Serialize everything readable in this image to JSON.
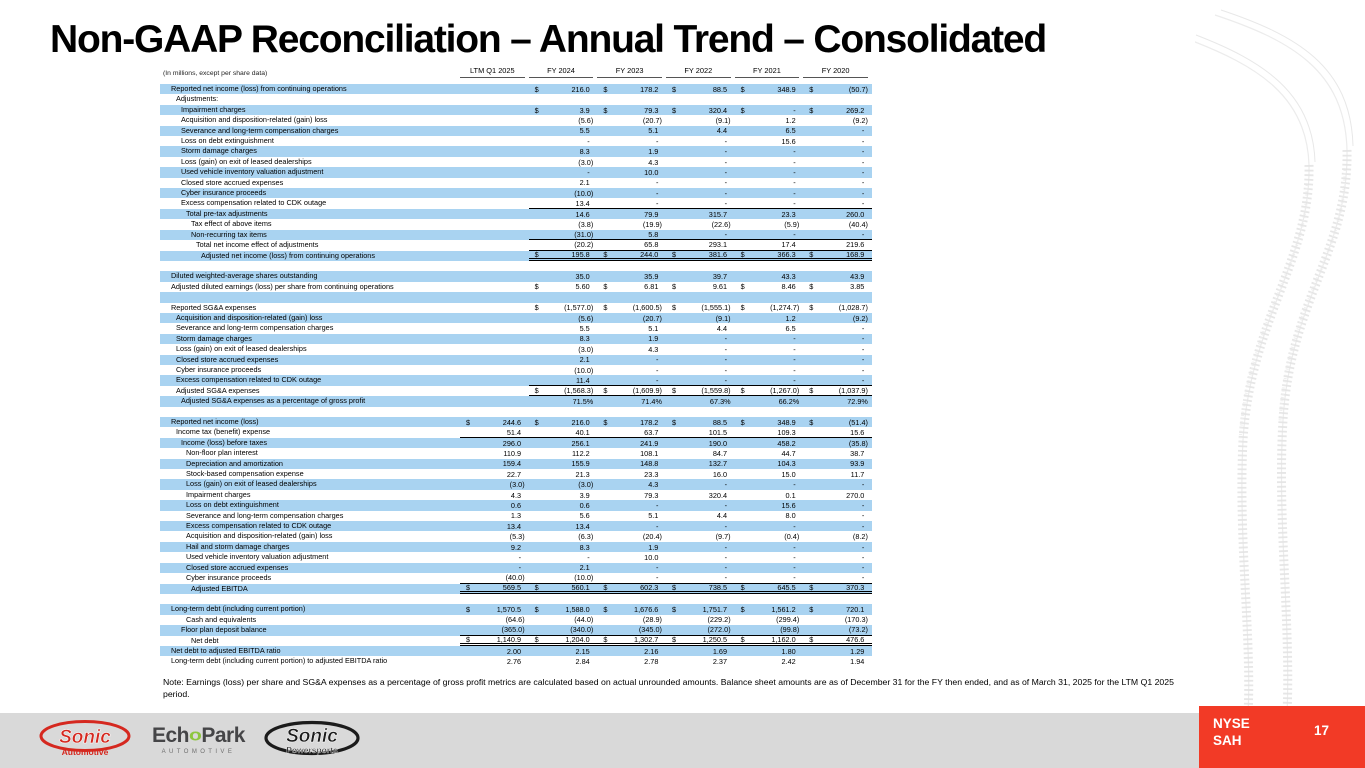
{
  "title": "Non-GAAP Reconciliation – Annual Trend – Consolidated",
  "table": {
    "units_label": "(In millions, except per share data)",
    "columns": [
      "LTM Q1 2025",
      "FY 2024",
      "FY 2023",
      "FY 2022",
      "FY 2021",
      "FY 2020"
    ],
    "rows": [
      {
        "label": "Reported net income (loss) from continuing operations",
        "indent": 1,
        "dollar": true,
        "values": [
          "",
          "216.0",
          "178.2",
          "88.5",
          "348.9",
          "(50.7)"
        ]
      },
      {
        "label": "Adjustments:",
        "indent": 2,
        "values": [
          "",
          "",
          "",
          "",
          "",
          ""
        ]
      },
      {
        "label": "Impairment charges",
        "indent": 3,
        "dollar": true,
        "values": [
          "",
          "3.9",
          "79.3",
          "320.4",
          "-",
          "269.2"
        ]
      },
      {
        "label": "Acquisition and disposition-related (gain) loss",
        "indent": 3,
        "values": [
          "",
          "(5.6)",
          "(20.7)",
          "(9.1)",
          "1.2",
          "(9.2)"
        ]
      },
      {
        "label": "Severance and long-term compensation charges",
        "indent": 3,
        "values": [
          "",
          "5.5",
          "5.1",
          "4.4",
          "6.5",
          "-"
        ]
      },
      {
        "label": "Loss on debt extinguishment",
        "indent": 3,
        "values": [
          "",
          "-",
          "-",
          "-",
          "15.6",
          "-"
        ]
      },
      {
        "label": "Storm damage charges",
        "indent": 3,
        "values": [
          "",
          "8.3",
          "1.9",
          "-",
          "-",
          "-"
        ]
      },
      {
        "label": "Loss (gain) on exit of leased dealerships",
        "indent": 3,
        "values": [
          "",
          "(3.0)",
          "4.3",
          "-",
          "-",
          "-"
        ]
      },
      {
        "label": "Used vehicle inventory valuation adjustment",
        "indent": 3,
        "values": [
          "",
          "-",
          "10.0",
          "-",
          "-",
          "-"
        ]
      },
      {
        "label": "Closed store accrued expenses",
        "indent": 3,
        "values": [
          "",
          "2.1",
          "-",
          "-",
          "-",
          "-"
        ]
      },
      {
        "label": "Cyber insurance proceeds",
        "indent": 3,
        "values": [
          "",
          "(10.0)",
          "-",
          "-",
          "-",
          "-"
        ]
      },
      {
        "label": "Excess compensation related to CDK outage",
        "indent": 3,
        "values": [
          "",
          "13.4",
          "-",
          "-",
          "-",
          "-"
        ],
        "border": "single"
      },
      {
        "label": "Total pre-tax adjustments",
        "indent": 4,
        "values": [
          "",
          "14.6",
          "79.9",
          "315.7",
          "23.3",
          "260.0"
        ]
      },
      {
        "label": "Tax effect of above items",
        "indent": 5,
        "values": [
          "",
          "(3.8)",
          "(19.9)",
          "(22.6)",
          "(5.9)",
          "(40.4)"
        ]
      },
      {
        "label": "Non-recurring tax items",
        "indent": 5,
        "values": [
          "",
          "(31.0)",
          "5.8",
          "-",
          "-",
          "-"
        ],
        "border": "single"
      },
      {
        "label": "Total net income effect of adjustments",
        "indent": 6,
        "values": [
          "",
          "(20.2)",
          "65.8",
          "293.1",
          "17.4",
          "219.6"
        ],
        "border": "single"
      },
      {
        "label": "Adjusted net income (loss) from continuing operations",
        "indent": 7,
        "dollar": true,
        "values": [
          "",
          "195.8",
          "244.0",
          "381.6",
          "366.3",
          "168.9"
        ],
        "border": "double"
      },
      {
        "type": "spacer"
      },
      {
        "label": "Diluted weighted-average shares outstanding",
        "indent": 1,
        "values": [
          "",
          "35.0",
          "35.9",
          "39.7",
          "43.3",
          "43.9"
        ]
      },
      {
        "label": "Adjusted diluted earnings (loss) per share from continuing operations",
        "indent": 1,
        "dollar": true,
        "values": [
          "",
          "5.60",
          "6.81",
          "9.61",
          "8.46",
          "3.85"
        ]
      },
      {
        "type": "spacer"
      },
      {
        "label": "Reported SG&A expenses",
        "indent": 1,
        "dollar": true,
        "values": [
          "",
          "(1,577.0)",
          "(1,600.5)",
          "(1,555.1)",
          "(1,274.7)",
          "(1,028.7)"
        ]
      },
      {
        "label": "Acquisition and disposition-related (gain) loss",
        "indent": 2,
        "values": [
          "",
          "(5.6)",
          "(20.7)",
          "(9.1)",
          "1.2",
          "(9.2)"
        ]
      },
      {
        "label": "Severance and long-term compensation charges",
        "indent": 2,
        "values": [
          "",
          "5.5",
          "5.1",
          "4.4",
          "6.5",
          "-"
        ]
      },
      {
        "label": "Storm damage charges",
        "indent": 2,
        "values": [
          "",
          "8.3",
          "1.9",
          "-",
          "-",
          "-"
        ]
      },
      {
        "label": "Loss (gain) on exit of leased dealerships",
        "indent": 2,
        "values": [
          "",
          "(3.0)",
          "4.3",
          "-",
          "-",
          "-"
        ]
      },
      {
        "label": "Closed store accrued expenses",
        "indent": 2,
        "values": [
          "",
          "2.1",
          "-",
          "-",
          "-",
          "-"
        ]
      },
      {
        "label": "Cyber insurance proceeds",
        "indent": 2,
        "values": [
          "",
          "(10.0)",
          "-",
          "-",
          "-",
          "-"
        ]
      },
      {
        "label": "Excess compensation related to CDK outage",
        "indent": 2,
        "values": [
          "",
          "11.4",
          "-",
          "-",
          "-",
          "-"
        ],
        "border": "single"
      },
      {
        "label": "Adjusted SG&A expenses",
        "indent": 2,
        "dollar": true,
        "values": [
          "",
          "(1,568.3)",
          "(1,609.9)",
          "(1,559.8)",
          "(1,267.0)",
          "(1,037.9)"
        ],
        "border": "single"
      },
      {
        "label": "Adjusted SG&A expenses as a percentage of gross profit",
        "indent": 3,
        "values": [
          "",
          "71.5%",
          "71.4%",
          "67.3%",
          "66.2%",
          "72.9%"
        ]
      },
      {
        "type": "spacer"
      },
      {
        "label": "Reported net income (loss)",
        "indent": 1,
        "dollar": true,
        "values": [
          "244.6",
          "216.0",
          "178.2",
          "88.5",
          "348.9",
          "(51.4)"
        ]
      },
      {
        "label": "Income tax (benefit) expense",
        "indent": 2,
        "values": [
          "51.4",
          "40.1",
          "63.7",
          "101.5",
          "109.3",
          "15.6"
        ],
        "border": "single"
      },
      {
        "label": "Income (loss) before taxes",
        "indent": 3,
        "values": [
          "296.0",
          "256.1",
          "241.9",
          "190.0",
          "458.2",
          "(35.8)"
        ]
      },
      {
        "label": "Non-floor plan interest",
        "indent": 4,
        "values": [
          "110.9",
          "112.2",
          "108.1",
          "84.7",
          "44.7",
          "38.7"
        ]
      },
      {
        "label": "Depreciation and amortization",
        "indent": 4,
        "values": [
          "159.4",
          "155.9",
          "148.8",
          "132.7",
          "104.3",
          "93.9"
        ]
      },
      {
        "label": "Stock-based compensation expense",
        "indent": 4,
        "values": [
          "22.7",
          "21.3",
          "23.3",
          "16.0",
          "15.0",
          "11.7"
        ]
      },
      {
        "label": "Loss (gain) on exit of leased dealerships",
        "indent": 4,
        "values": [
          "(3.0)",
          "(3.0)",
          "4.3",
          "-",
          "-",
          "-"
        ]
      },
      {
        "label": "Impairment charges",
        "indent": 4,
        "values": [
          "4.3",
          "3.9",
          "79.3",
          "320.4",
          "0.1",
          "270.0"
        ]
      },
      {
        "label": "Loss on debt extinguishment",
        "indent": 4,
        "values": [
          "0.6",
          "0.6",
          "-",
          "-",
          "15.6",
          "-"
        ]
      },
      {
        "label": "Severance and long-term compensation charges",
        "indent": 4,
        "values": [
          "1.3",
          "5.6",
          "5.1",
          "4.4",
          "8.0",
          "-"
        ]
      },
      {
        "label": "Excess compensation related to CDK outage",
        "indent": 4,
        "values": [
          "13.4",
          "13.4",
          "-",
          "-",
          "-",
          "-"
        ]
      },
      {
        "label": "Acquisition and disposition-related (gain) loss",
        "indent": 4,
        "values": [
          "(5.3)",
          "(6.3)",
          "(20.4)",
          "(9.7)",
          "(0.4)",
          "(8.2)"
        ]
      },
      {
        "label": "Hail and storm damage charges",
        "indent": 4,
        "values": [
          "9.2",
          "8.3",
          "1.9",
          "-",
          "-",
          "-"
        ]
      },
      {
        "label": "Used vehicle inventory valuation adjustment",
        "indent": 4,
        "values": [
          "-",
          "-",
          "10.0",
          "-",
          "-",
          "-"
        ]
      },
      {
        "label": "Closed store accrued expenses",
        "indent": 4,
        "values": [
          "-",
          "2.1",
          "-",
          "-",
          "-",
          "-"
        ]
      },
      {
        "label": "Cyber insurance proceeds",
        "indent": 4,
        "values": [
          "(40.0)",
          "(10.0)",
          "-",
          "-",
          "-",
          "-"
        ],
        "border": "single"
      },
      {
        "label": "Adjusted EBITDA",
        "indent": 5,
        "dollar": true,
        "values": [
          "569.5",
          "560.1",
          "602.3",
          "738.5",
          "645.5",
          "370.3"
        ],
        "border": "double"
      },
      {
        "type": "spacer"
      },
      {
        "label": "Long-term debt (including current portion)",
        "indent": 1,
        "dollar": true,
        "values": [
          "1,570.5",
          "1,588.0",
          "1,676.6",
          "1,751.7",
          "1,561.2",
          "720.1"
        ]
      },
      {
        "label": "Cash and equivalents",
        "indent": 4,
        "values": [
          "(64.6)",
          "(44.0)",
          "(28.9)",
          "(229.2)",
          "(299.4)",
          "(170.3)"
        ]
      },
      {
        "label": "Floor plan deposit balance",
        "indent": 3,
        "values": [
          "(365.0)",
          "(340.0)",
          "(345.0)",
          "(272.0)",
          "(99.8)",
          "(73.2)"
        ],
        "border": "single"
      },
      {
        "label": "Net debt",
        "indent": 5,
        "dollar": true,
        "values": [
          "1,140.9",
          "1,204.0",
          "1,302.7",
          "1,250.5",
          "1,162.0",
          "476.6"
        ],
        "border": "double"
      },
      {
        "label": "Net debt to adjusted EBITDA ratio",
        "indent": 1,
        "values": [
          "2.00",
          "2.15",
          "2.16",
          "1.69",
          "1.80",
          "1.29"
        ]
      },
      {
        "label": "Long-term debt (including current portion) to adjusted EBITDA ratio",
        "indent": 1,
        "values": [
          "2.76",
          "2.84",
          "2.78",
          "2.37",
          "2.42",
          "1.94"
        ]
      }
    ]
  },
  "note": "Note: Earnings (loss) per share and SG&A expenses as a percentage of gross profit metrics are calculated based on actual unrounded amounts. Balance sheet amounts are as of December 31 for the FY then ended, and as of March 31, 2025 for the LTM Q1 2025 period.",
  "footer": {
    "logos": {
      "sonic_automotive": {
        "name": "Sonic",
        "sub": "Automotive"
      },
      "echopark": {
        "pre": "Ech",
        "o": "o",
        "post": "Park",
        "sub": "AUTOMOTIVE"
      },
      "sonic_powersports": {
        "name": "Sonic",
        "sub": "Powersports"
      }
    },
    "ticker": {
      "exchange": "NYSE",
      "symbol": "SAH"
    },
    "page_number": "17"
  },
  "colors": {
    "stripe_blue": "#A9D3F1",
    "accent_red": "#F23A26",
    "footer_gray": "#D9D9D9",
    "logo_red": "#D5281F",
    "echopark_green": "#8DC63F",
    "powersports_black": "#1B1B1B"
  }
}
